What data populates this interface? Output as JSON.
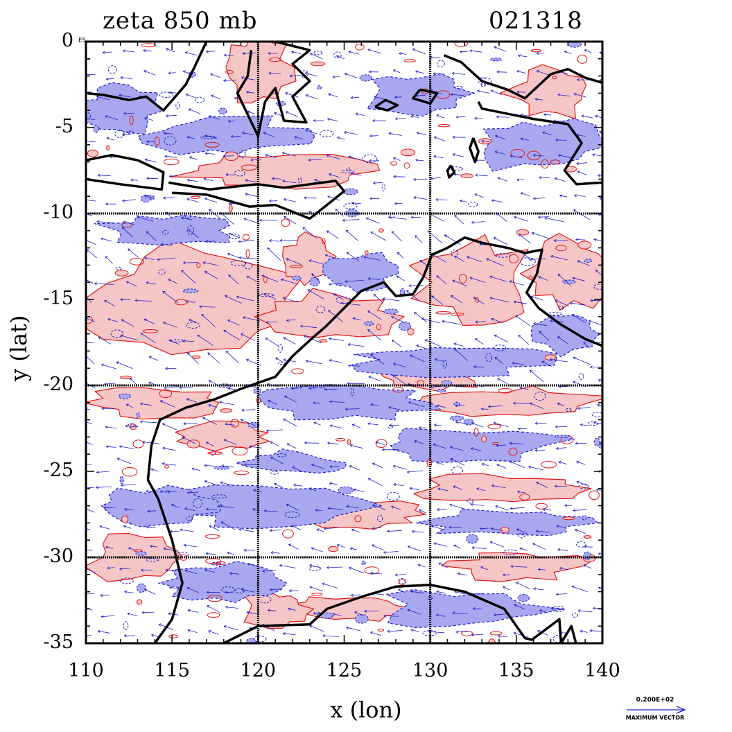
{
  "header": {
    "title_left": "zeta 850 mb",
    "title_right": "021318"
  },
  "axes": {
    "xlabel": "x (lon)",
    "ylabel": "y (lat)",
    "xlim": [
      110,
      140
    ],
    "ylim": [
      -35,
      0
    ],
    "xticks": [
      {
        "value": 110,
        "label": "110"
      },
      {
        "value": 115,
        "label": "115"
      },
      {
        "value": 120,
        "label": "120"
      },
      {
        "value": 125,
        "label": "125"
      },
      {
        "value": 130,
        "label": "130"
      },
      {
        "value": 135,
        "label": "135"
      },
      {
        "value": 140,
        "label": "140"
      }
    ],
    "yticks": [
      {
        "value": 0,
        "label": "0"
      },
      {
        "value": -5,
        "label": "-5"
      },
      {
        "value": -10,
        "label": "-10"
      },
      {
        "value": -15,
        "label": "-15"
      },
      {
        "value": -20,
        "label": "-20"
      },
      {
        "value": -25,
        "label": "-25"
      },
      {
        "value": -30,
        "label": "-30"
      },
      {
        "value": -35,
        "label": "-35"
      }
    ],
    "y_exponent_label": "E5",
    "gridlines_lon": [
      120,
      130
    ],
    "gridlines_lat": [
      -10,
      -20,
      -30
    ]
  },
  "legend": {
    "vector_value": "0.200E+02",
    "vector_caption": "MAXIMUM VECTOR"
  },
  "style": {
    "positive_fill": "#f6c6c6",
    "positive_line": "#e01818",
    "negative_fill": "#a8a8f0",
    "negative_line": "#1e1ec8",
    "coast_color": "#000000",
    "vector_color": "#1e1ec8"
  },
  "map": {
    "coastline_lonlat": [
      [
        [
          114.0,
          -35.0
        ],
        [
          115.0,
          -33.6
        ],
        [
          115.6,
          -31.5
        ],
        [
          115.0,
          -29.0
        ],
        [
          114.2,
          -26.6
        ],
        [
          113.6,
          -25.5
        ],
        [
          113.8,
          -23.5
        ],
        [
          114.3,
          -22.0
        ],
        [
          115.8,
          -21.3
        ],
        [
          117.5,
          -20.8
        ],
        [
          119.0,
          -20.2
        ],
        [
          121.0,
          -19.5
        ],
        [
          122.0,
          -18.3
        ],
        [
          123.2,
          -17.2
        ],
        [
          123.9,
          -16.6
        ],
        [
          125.0,
          -15.5
        ],
        [
          126.0,
          -14.5
        ],
        [
          127.3,
          -14.0
        ],
        [
          128.0,
          -14.8
        ],
        [
          129.0,
          -14.7
        ],
        [
          129.6,
          -13.7
        ],
        [
          130.1,
          -12.4
        ],
        [
          131.0,
          -12.0
        ],
        [
          132.0,
          -11.4
        ],
        [
          133.0,
          -11.7
        ],
        [
          134.5,
          -12.0
        ],
        [
          135.5,
          -12.3
        ],
        [
          136.5,
          -12.1
        ],
        [
          136.2,
          -13.5
        ],
        [
          135.6,
          -14.6
        ],
        [
          136.3,
          -15.5
        ],
        [
          137.5,
          -16.4
        ],
        [
          139.0,
          -17.3
        ],
        [
          140.0,
          -17.7
        ]
      ],
      [
        [
          140.0,
          -38.0
        ],
        [
          139.5,
          -35.8
        ],
        [
          138.6,
          -35.5
        ],
        [
          138.2,
          -34.0
        ],
        [
          137.6,
          -35.0
        ],
        [
          137.5,
          -33.6
        ],
        [
          135.9,
          -34.8
        ],
        [
          135.5,
          -34.7
        ],
        [
          134.3,
          -33.0
        ],
        [
          132.0,
          -32.0
        ],
        [
          130.0,
          -31.6
        ],
        [
          128.0,
          -31.7
        ],
        [
          126.0,
          -32.3
        ],
        [
          124.0,
          -33.0
        ],
        [
          123.0,
          -33.9
        ],
        [
          120.0,
          -34.0
        ],
        [
          118.0,
          -35.0
        ]
      ],
      [
        [
          110.0,
          -6.9
        ],
        [
          111.5,
          -6.6
        ],
        [
          113.0,
          -6.9
        ],
        [
          114.5,
          -7.6
        ],
        [
          114.4,
          -8.6
        ],
        [
          112.0,
          -8.3
        ],
        [
          110.0,
          -8.0
        ]
      ],
      [
        [
          114.8,
          -8.2
        ],
        [
          116.0,
          -8.4
        ],
        [
          117.2,
          -8.6
        ],
        [
          119.0,
          -8.4
        ],
        [
          120.0,
          -8.3
        ],
        [
          121.5,
          -8.5
        ],
        [
          123.0,
          -8.3
        ],
        [
          124.5,
          -8.1
        ],
        [
          125.0,
          -8.7
        ],
        [
          124.0,
          -9.5
        ],
        [
          123.0,
          -10.3
        ],
        [
          121.0,
          -9.5
        ],
        [
          119.5,
          -9.6
        ],
        [
          117.0,
          -8.9
        ],
        [
          115.0,
          -8.8
        ]
      ],
      [
        [
          110.0,
          -3.0
        ],
        [
          111.0,
          -3.1
        ],
        [
          112.5,
          -3.4
        ],
        [
          113.5,
          -3.2
        ],
        [
          114.5,
          -4.0
        ],
        [
          115.8,
          -2.5
        ],
        [
          116.3,
          -1.5
        ],
        [
          117.0,
          0.0
        ]
      ],
      [
        [
          119.6,
          -0.5
        ],
        [
          119.4,
          -2.0
        ],
        [
          118.8,
          -3.0
        ],
        [
          120.0,
          -5.5
        ],
        [
          120.4,
          -3.5
        ],
        [
          121.0,
          -2.7
        ],
        [
          121.5,
          -4.6
        ],
        [
          122.8,
          -4.7
        ],
        [
          122.0,
          -3.2
        ],
        [
          123.0,
          -2.3
        ],
        [
          122.0,
          -1.3
        ],
        [
          123.0,
          -0.5
        ],
        [
          121.0,
          0.0
        ]
      ],
      [
        [
          130.8,
          -0.8
        ],
        [
          131.8,
          -1.2
        ],
        [
          133.0,
          -2.3
        ],
        [
          134.5,
          -2.8
        ],
        [
          135.5,
          -3.3
        ],
        [
          137.0,
          -1.9
        ],
        [
          138.0,
          -1.6
        ],
        [
          139.0,
          -2.1
        ],
        [
          140.0,
          -2.4
        ]
      ],
      [
        [
          140.0,
          -8.2
        ],
        [
          138.5,
          -8.3
        ],
        [
          137.8,
          -7.5
        ],
        [
          138.8,
          -5.9
        ],
        [
          138.0,
          -4.8
        ],
        [
          136.0,
          -4.5
        ],
        [
          134.5,
          -4.2
        ],
        [
          133.0,
          -3.9
        ],
        [
          132.8,
          -3.5
        ]
      ],
      [
        [
          126.8,
          -3.8
        ],
        [
          127.4,
          -3.4
        ],
        [
          128.1,
          -3.7
        ],
        [
          127.5,
          -4.0
        ],
        [
          126.8,
          -3.8
        ]
      ],
      [
        [
          129.4,
          -2.8
        ],
        [
          130.4,
          -3.0
        ],
        [
          130.0,
          -3.6
        ],
        [
          129.0,
          -3.3
        ],
        [
          129.4,
          -2.8
        ]
      ],
      [
        [
          132.5,
          -5.6
        ],
        [
          132.8,
          -6.4
        ],
        [
          132.6,
          -7.0
        ],
        [
          132.3,
          -6.2
        ],
        [
          132.5,
          -5.6
        ]
      ],
      [
        [
          131.2,
          -7.2
        ],
        [
          131.4,
          -7.6
        ],
        [
          131.1,
          -7.9
        ],
        [
          131.0,
          -7.5
        ],
        [
          131.2,
          -7.2
        ]
      ]
    ]
  }
}
